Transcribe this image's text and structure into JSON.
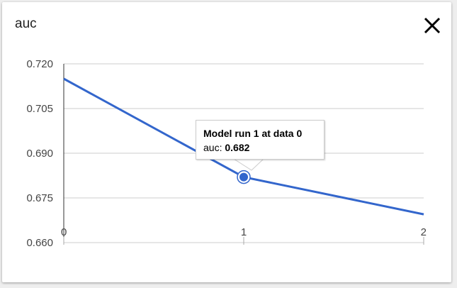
{
  "card": {
    "title": "auc",
    "close_icon": "close-x-icon"
  },
  "chart_data": {
    "type": "line",
    "title": "auc",
    "x": [
      0,
      1,
      2
    ],
    "series": [
      {
        "values": [
          0.715,
          0.682,
          0.6695
        ],
        "color": "#3366cc"
      }
    ],
    "xlim": [
      0,
      2
    ],
    "ylim": [
      0.66,
      0.72
    ],
    "x_ticks": [
      "0",
      "1",
      "2"
    ],
    "y_ticks": [
      "0.720",
      "0.705",
      "0.690",
      "0.675",
      "0.660"
    ],
    "grid": true,
    "highlighted_point": 1
  },
  "tooltip": {
    "title": "Model run 1 at data 0",
    "label": "auc:",
    "value": "0.682"
  }
}
